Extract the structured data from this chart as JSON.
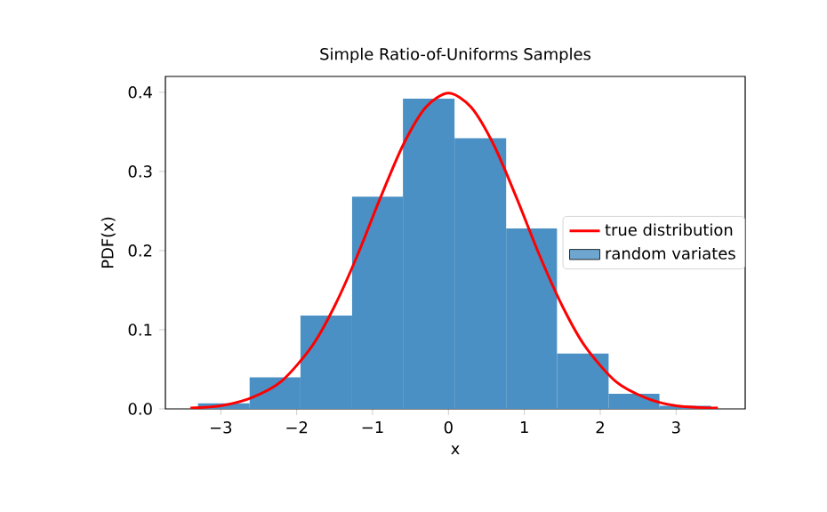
{
  "chart_data": {
    "type": "histogram",
    "title": "Simple Ratio-of-Uniforms Samples",
    "xlabel": "x",
    "ylabel": "PDF(x)",
    "xlim": [
      -3.73,
      3.91
    ],
    "ylim": [
      0,
      0.42
    ],
    "xticks": [
      {
        "value": -3,
        "label": "−3"
      },
      {
        "value": -2,
        "label": "−2"
      },
      {
        "value": -1,
        "label": "−1"
      },
      0,
      1,
      2,
      3
    ],
    "yticks": [
      {
        "value": 0,
        "label": "0.0"
      },
      0.1,
      0.2,
      0.3,
      0.4
    ],
    "grid": false,
    "legend": "right",
    "series": [
      {
        "name": "true distribution",
        "type": "line",
        "color": "#ff0000",
        "x": [
          -3.4,
          -3.0,
          -2.6,
          -2.2,
          -1.8,
          -1.5,
          -1.2,
          -0.9,
          -0.6,
          -0.3,
          0,
          0.3,
          0.6,
          0.9,
          1.2,
          1.5,
          1.8,
          2.2,
          2.6,
          3.0,
          3.55
        ],
        "values": [
          0.001,
          0.004,
          0.014,
          0.035,
          0.079,
          0.13,
          0.194,
          0.266,
          0.333,
          0.381,
          0.399,
          0.381,
          0.333,
          0.266,
          0.194,
          0.13,
          0.079,
          0.035,
          0.014,
          0.004,
          0.001
        ]
      },
      {
        "name": "random variates",
        "type": "histogram",
        "color": "#4a90c4",
        "bins": [
          -3.3,
          -2.62,
          -1.95,
          -1.27,
          -0.6,
          0.08,
          0.76,
          1.43,
          2.11,
          2.78,
          3.46
        ],
        "values": [
          0.007,
          0.04,
          0.118,
          0.268,
          0.392,
          0.342,
          0.228,
          0.07,
          0.019,
          0.004
        ]
      }
    ]
  }
}
